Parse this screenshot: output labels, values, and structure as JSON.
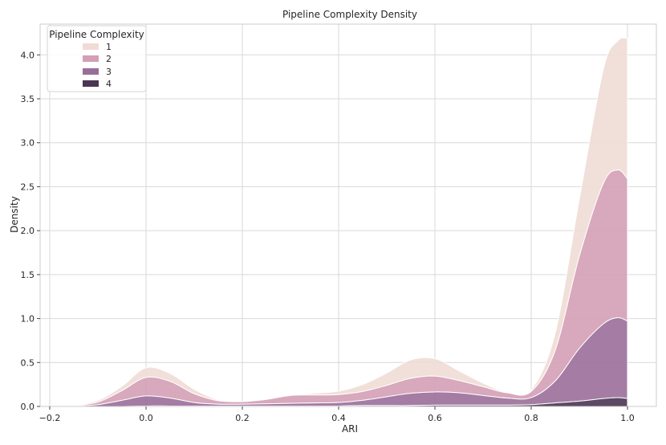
{
  "chart_data": {
    "type": "area",
    "stacked": true,
    "title": "Pipeline Complexity Density",
    "xlabel": "ARI",
    "ylabel": "Density",
    "xlim": [
      -0.22,
      1.06
    ],
    "ylim": [
      0,
      4.35
    ],
    "xticks": [
      "-0.2",
      "0.0",
      "0.2",
      "0.4",
      "0.6",
      "0.8",
      "1.0"
    ],
    "xtick_values": [
      -0.2,
      0.0,
      0.2,
      0.4,
      0.6,
      0.8,
      1.0
    ],
    "yticks": [
      "0.0",
      "0.5",
      "1.0",
      "1.5",
      "2.0",
      "2.5",
      "3.0",
      "3.5",
      "4.0"
    ],
    "ytick_values": [
      0.0,
      0.5,
      1.0,
      1.5,
      2.0,
      2.5,
      3.0,
      3.5,
      4.0
    ],
    "grid": true,
    "legend": {
      "title": "Pipeline Complexity",
      "position": "top-left",
      "entries": [
        "1",
        "2",
        "3",
        "4"
      ]
    },
    "x": [
      -0.16,
      -0.1,
      -0.05,
      0.0,
      0.05,
      0.1,
      0.15,
      0.2,
      0.25,
      0.3,
      0.35,
      0.4,
      0.45,
      0.5,
      0.55,
      0.6,
      0.65,
      0.7,
      0.75,
      0.8,
      0.85,
      0.9,
      0.95,
      0.98,
      1.0
    ],
    "series": [
      {
        "name": "4",
        "color": "#4a3552",
        "values": [
          0.0,
          0.0,
          0.0,
          0.005,
          0.005,
          0.005,
          0.005,
          0.005,
          0.005,
          0.005,
          0.005,
          0.005,
          0.01,
          0.01,
          0.01,
          0.015,
          0.015,
          0.015,
          0.015,
          0.02,
          0.04,
          0.06,
          0.09,
          0.1,
          0.09
        ]
      },
      {
        "name": "3",
        "color": "#9a6e9a",
        "values": [
          0.0,
          0.02,
          0.07,
          0.115,
          0.09,
          0.04,
          0.02,
          0.02,
          0.025,
          0.03,
          0.035,
          0.04,
          0.06,
          0.1,
          0.14,
          0.15,
          0.14,
          0.11,
          0.08,
          0.08,
          0.25,
          0.6,
          0.85,
          0.91,
          0.88
        ]
      },
      {
        "name": "2",
        "color": "#d49fb6",
        "values": [
          0.0,
          0.03,
          0.11,
          0.21,
          0.19,
          0.1,
          0.04,
          0.03,
          0.05,
          0.09,
          0.09,
          0.09,
          0.1,
          0.13,
          0.17,
          0.18,
          0.14,
          0.1,
          0.06,
          0.07,
          0.35,
          1.05,
          1.6,
          1.68,
          1.62
        ]
      },
      {
        "name": "1",
        "color": "#f0dcd5",
        "values": [
          0.0,
          0.02,
          0.05,
          0.11,
          0.09,
          0.05,
          0.01,
          0.0,
          0.0,
          0.0,
          0.02,
          0.04,
          0.08,
          0.14,
          0.21,
          0.2,
          0.11,
          0.04,
          0.01,
          0.02,
          0.2,
          0.65,
          1.3,
          1.47,
          1.6
        ]
      }
    ]
  }
}
